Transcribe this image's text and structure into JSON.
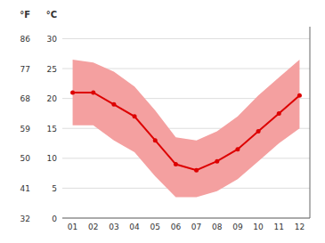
{
  "chart_data": {
    "type": "line",
    "categories": [
      "01",
      "02",
      "03",
      "04",
      "05",
      "06",
      "07",
      "08",
      "09",
      "10",
      "11",
      "12"
    ],
    "series": [
      {
        "type": "area",
        "color": "#f4a0a0",
        "low": [
          15.5,
          15.5,
          13.0,
          11.0,
          7.0,
          3.5,
          3.5,
          4.5,
          6.5,
          9.5,
          12.5,
          15.0
        ],
        "high": [
          26.5,
          26.0,
          24.5,
          22.0,
          18.0,
          13.5,
          13.0,
          14.5,
          17.0,
          20.5,
          23.5,
          26.5
        ]
      },
      {
        "type": "line",
        "color": "#dd0000",
        "marker": "circle",
        "values": [
          21.0,
          21.0,
          19.0,
          17.0,
          13.0,
          9.0,
          8.0,
          9.5,
          11.5,
          14.5,
          17.5,
          20.5
        ]
      }
    ],
    "y_label": "°C",
    "ylim": [
      0,
      32
    ],
    "yticks": [
      0,
      5,
      10,
      15,
      20,
      25,
      30
    ],
    "y2_label": "°F",
    "y2lim": [
      32,
      89.6
    ],
    "y2ticks": [
      32,
      41,
      50,
      59,
      68,
      77,
      86
    ],
    "grid": true
  }
}
